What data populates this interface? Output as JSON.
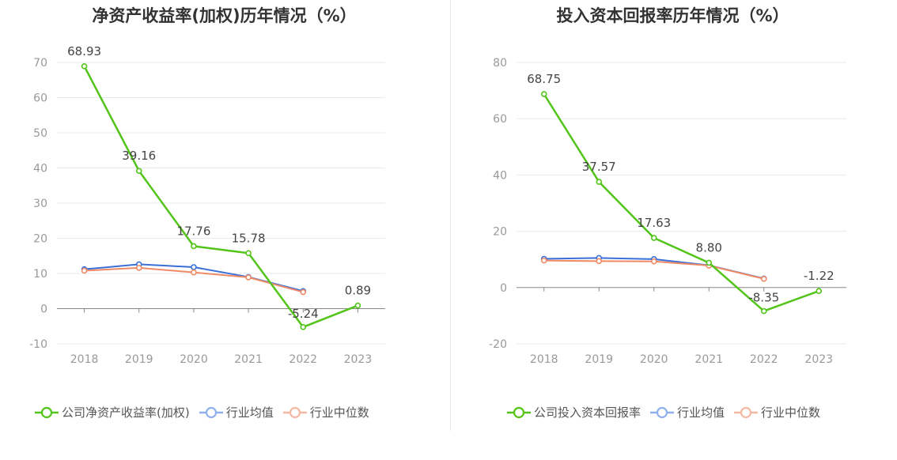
{
  "chart_data": [
    {
      "type": "line",
      "title": "净资产收益率(加权)历年情况（%）",
      "categories": [
        "2018",
        "2019",
        "2020",
        "2021",
        "2022",
        "2023"
      ],
      "ylim": [
        -10,
        70
      ],
      "yticks": [
        -10,
        0,
        10,
        20,
        30,
        40,
        50,
        60,
        70
      ],
      "grid": true,
      "legend_position": "bottom",
      "series": [
        {
          "name": "公司净资产收益率(加权)",
          "color": "#52c41a",
          "values": [
            68.93,
            39.16,
            17.76,
            15.78,
            -5.24,
            0.89
          ],
          "labels": [
            "68.93",
            "39.16",
            "17.76",
            "15.78",
            "-5.24",
            "0.89"
          ]
        },
        {
          "name": "行业均值",
          "color": "#3a6fd8",
          "values": [
            11.2,
            12.6,
            11.8,
            9.0,
            5.0,
            null
          ]
        },
        {
          "name": "行业中位数",
          "color": "#f08a66",
          "values": [
            10.8,
            11.6,
            10.3,
            8.9,
            4.7,
            null
          ]
        }
      ]
    },
    {
      "type": "line",
      "title": "投入资本回报率历年情况（%）",
      "categories": [
        "2018",
        "2019",
        "2020",
        "2021",
        "2022",
        "2023"
      ],
      "ylim": [
        -20,
        80
      ],
      "yticks": [
        -20,
        0,
        20,
        40,
        60,
        80
      ],
      "grid": true,
      "legend_position": "bottom",
      "series": [
        {
          "name": "公司投入资本回报率",
          "color": "#52c41a",
          "values": [
            68.75,
            37.57,
            17.63,
            8.8,
            -8.35,
            -1.22
          ],
          "labels": [
            "68.75",
            "37.57",
            "17.63",
            "8.80",
            "-8.35",
            "-1.22"
          ]
        },
        {
          "name": "行业均值",
          "color": "#3a6fd8",
          "values": [
            10.2,
            10.5,
            10.1,
            7.9,
            3.2,
            null
          ]
        },
        {
          "name": "行业中位数",
          "color": "#f08a66",
          "values": [
            9.6,
            9.4,
            9.3,
            7.8,
            3.1,
            null
          ]
        }
      ]
    }
  ]
}
